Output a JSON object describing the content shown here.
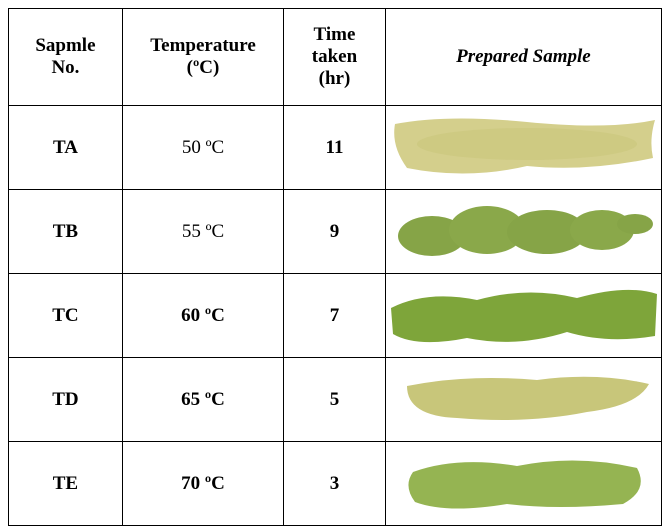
{
  "table": {
    "header": [
      "Sapmle No.",
      "Temperature (ºC)",
      "Time taken (hr)",
      "Prepared Sample"
    ],
    "rows": [
      [
        "TA",
        "50 ºC",
        11
      ],
      [
        "TB",
        "55 ºC",
        9
      ],
      [
        "TC",
        "60 ºC",
        7
      ],
      [
        "TD",
        "65 ºC",
        5
      ],
      [
        "TE",
        "70 ºC",
        3
      ]
    ]
  }
}
